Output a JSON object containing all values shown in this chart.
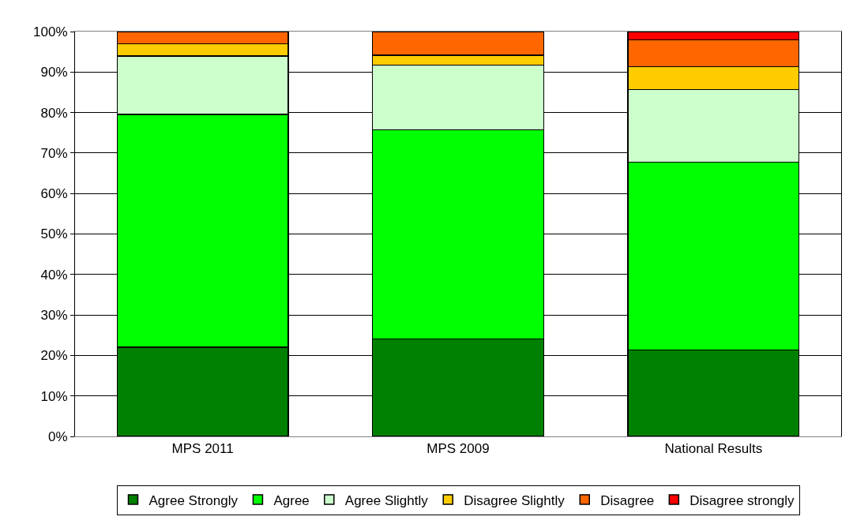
{
  "chart_data": {
    "type": "bar",
    "stacked": true,
    "categories": [
      "MPS 2011",
      "MPS 2009",
      "National Results"
    ],
    "series": [
      {
        "name": "Agree Strongly",
        "color": "#008000",
        "values": [
          22.0,
          24.1,
          21.3
        ]
      },
      {
        "name": "Agree",
        "color": "#00ff00",
        "values": [
          57.5,
          51.6,
          46.4
        ]
      },
      {
        "name": "Agree Slightly",
        "color": "#ccffcc",
        "values": [
          14.5,
          16.0,
          18.0
        ]
      },
      {
        "name": "Disagree Slightly",
        "color": "#ffcc00",
        "values": [
          3.0,
          2.5,
          5.6
        ]
      },
      {
        "name": "Disagree",
        "color": "#ff6600",
        "values": [
          3.0,
          5.8,
          6.7
        ]
      },
      {
        "name": "Disagree strongly",
        "color": "#ff0000",
        "values": [
          null,
          null,
          2.0
        ]
      }
    ],
    "ylim": [
      0,
      100
    ],
    "yticks": [
      {
        "value": 0,
        "label": "0%"
      },
      {
        "value": 10,
        "label": "10%"
      },
      {
        "value": 20,
        "label": "20%"
      },
      {
        "value": 30,
        "label": "30%"
      },
      {
        "value": 40,
        "label": "40%"
      },
      {
        "value": 50,
        "label": "50%"
      },
      {
        "value": 60,
        "label": "60%"
      },
      {
        "value": 70,
        "label": "70%"
      },
      {
        "value": 80,
        "label": "80%"
      },
      {
        "value": 90,
        "label": "90%"
      },
      {
        "value": 100,
        "label": "100%"
      }
    ],
    "grid": "y",
    "legend": "bottom"
  }
}
